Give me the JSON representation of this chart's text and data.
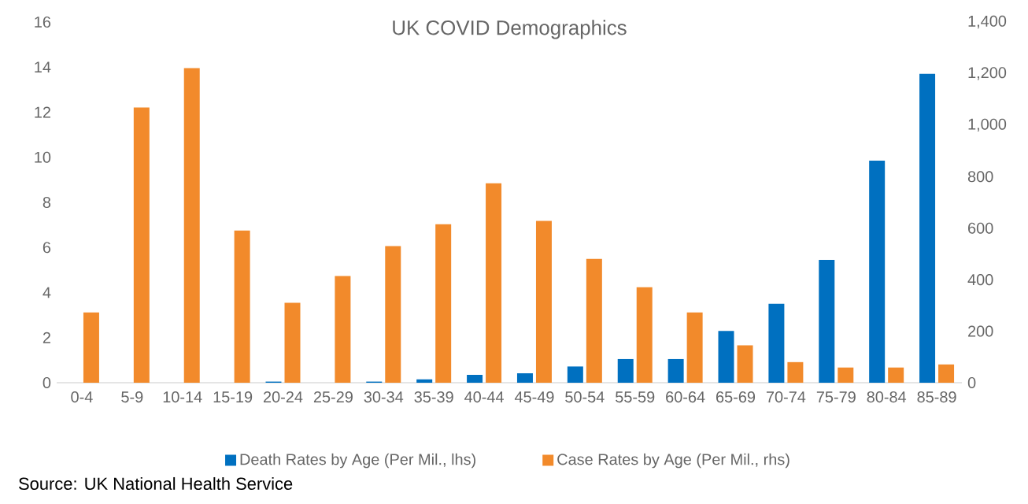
{
  "chart_data": {
    "type": "bar",
    "title": "UK COVID Demographics",
    "categories": [
      "0-4",
      "5-9",
      "10-14",
      "15-19",
      "20-24",
      "25-29",
      "30-34",
      "35-39",
      "40-44",
      "45-49",
      "50-54",
      "55-59",
      "60-64",
      "65-69",
      "70-74",
      "75-79",
      "80-84",
      "85-89"
    ],
    "series": [
      {
        "name": "Death Rates by Age (Per Mil., lhs)",
        "color": "#0070c0",
        "axis": "y",
        "values": [
          0,
          0,
          0,
          0,
          0.05,
          0,
          0.05,
          0.15,
          0.35,
          0.42,
          0.72,
          1.05,
          1.05,
          2.3,
          3.5,
          5.45,
          9.85,
          13.7
        ]
      },
      {
        "name": "Case Rates by Age (Per Mil., rhs)",
        "color": "#f28a2b",
        "axis": "y2",
        "values": [
          273,
          1068,
          1221,
          591,
          310,
          414,
          530,
          615,
          774,
          628,
          481,
          371,
          273,
          145,
          80,
          59,
          59,
          71
        ]
      }
    ],
    "ylim": [
      0,
      16
    ],
    "yticks": [
      0,
      2,
      4,
      6,
      8,
      10,
      12,
      14,
      16
    ],
    "y2lim": [
      0,
      1400
    ],
    "y2ticks": [
      0,
      200,
      400,
      600,
      800,
      {
        "value": 1000,
        "label": "1,000"
      },
      {
        "value": 1200,
        "label": "1,200"
      },
      {
        "value": 1400,
        "label": "1,400"
      }
    ],
    "legend": "bottom",
    "annotations": [
      "Source: UK National Health Service"
    ]
  }
}
